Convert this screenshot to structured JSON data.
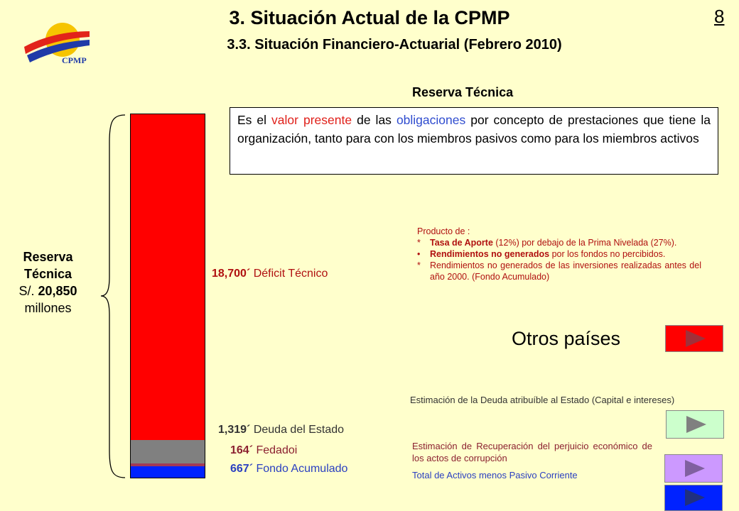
{
  "header": {
    "title": "3. Situación Actual de la CPMP",
    "subtitle": "3.3. Situación Financiero-Actuarial (Febrero 2010)",
    "page_number": "8"
  },
  "logo": {
    "text": "CPMP",
    "icon": "cpmp-logo"
  },
  "definition": {
    "heading": "Reserva Técnica",
    "part1": "Es el ",
    "highlight1": "valor presente",
    "part2": " de las ",
    "highlight2": "obligaciones",
    "part3": " por concepto de prestaciones que tiene la organización, tanto para con los miembros pasivos como para los miembros activos"
  },
  "left_label": {
    "line1": "Reserva",
    "line2": "Técnica",
    "prefix": "S/. ",
    "amount": "20,850",
    "line4": "millones"
  },
  "bar": {
    "segments": [
      {
        "label_value": "18,700´",
        "label_text": " Déficit Técnico",
        "value": 18700,
        "color": "#ff0000"
      },
      {
        "label_value": "1,319´",
        "label_text": " Deuda del Estado",
        "value": 1319,
        "color": "#808080"
      },
      {
        "label_value": "164´",
        "label_text": " Fedadoi",
        "value": 164,
        "color": "#a33a55"
      },
      {
        "label_value": "667´",
        "label_text": " Fondo Acumulado",
        "value": 667,
        "color": "#0022ff"
      }
    ]
  },
  "producto": {
    "heading": "Producto de :",
    "items": [
      {
        "marker": "*",
        "bold": "Tasa de Aporte",
        "text": " (12%) por debajo de la Prima Nivelada (27%)."
      },
      {
        "marker": "•",
        "bold": "Rendimientos no generados",
        "text": " por los fondos no percibidos."
      },
      {
        "marker": "*",
        "bold": "",
        "text": "Rendimientos no generados de las inversiones realizadas antes del año 2000. (Fondo Acumulado)"
      }
    ]
  },
  "otros_paises": {
    "label": "Otros países",
    "button_color": "#ff0000",
    "arrow_color": "#a0303a"
  },
  "estimacion_deuda": {
    "text": "Estimación de la Deuda atribuíble al Estado (Capital e intereses)",
    "button_color": "#ccffcc",
    "arrow_color": "#808080"
  },
  "estimacion_recuperacion": {
    "text": "Estimación de Recuperación del perjuicio económico de los actos de corrupción",
    "button_color": "#cc99ff",
    "arrow_color": "#8060a0"
  },
  "total_activos": {
    "text": "Total de Activos menos Pasivo Corriente",
    "button_color": "#0022ff",
    "arrow_color": "#203080"
  }
}
